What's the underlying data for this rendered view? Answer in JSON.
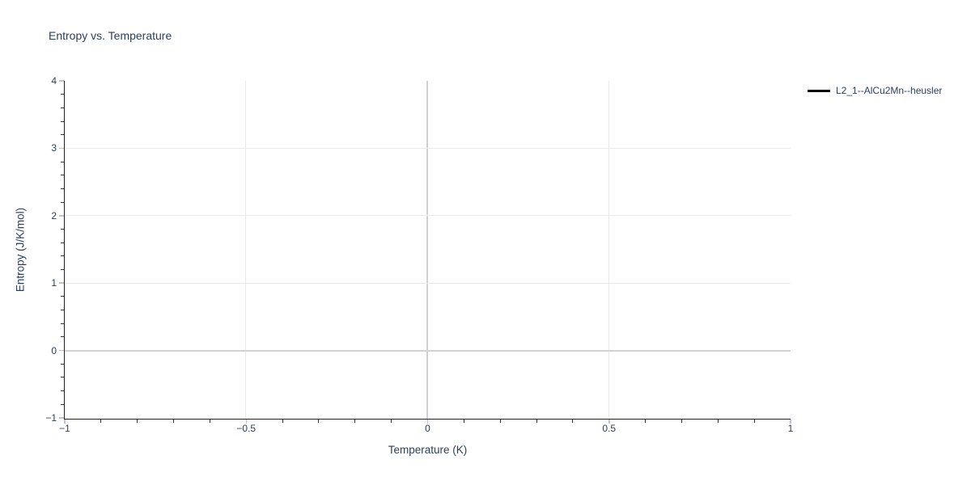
{
  "figure": {
    "background": "#ffffff"
  },
  "chart_data": {
    "type": "line",
    "title": "Entropy vs. Temperature",
    "xlabel": "Temperature (K)",
    "ylabel": "Entropy (J/K/mol)",
    "xlim": [
      -1,
      1
    ],
    "ylim": [
      -1,
      4
    ],
    "x_major_ticks": [
      -1,
      -0.5,
      0,
      0.5,
      1
    ],
    "x_tick_labels": [
      "−1",
      "−0.5",
      "0",
      "0.5",
      "1"
    ],
    "x_minor_step": 0.1,
    "y_major_ticks": [
      -1,
      0,
      1,
      2,
      3,
      4
    ],
    "y_tick_labels": [
      "−1",
      "0",
      "1",
      "2",
      "3",
      "4"
    ],
    "y_minor_step": 0.2,
    "grid": true,
    "zerolines": true,
    "legend_position": "right",
    "series": [
      {
        "name": "L2_1--AlCu2Mn--heusler",
        "color": "#000000",
        "line_style": "solid",
        "points": []
      }
    ]
  },
  "colors": {
    "text": "#2a3f5f",
    "axis_line": "#222222",
    "gridline": "#e9e9e9",
    "zeroline": "#d2d2d2",
    "major_tick": "#c2c2c2",
    "minor_tick": "#333333",
    "legend_line": "#000000"
  }
}
